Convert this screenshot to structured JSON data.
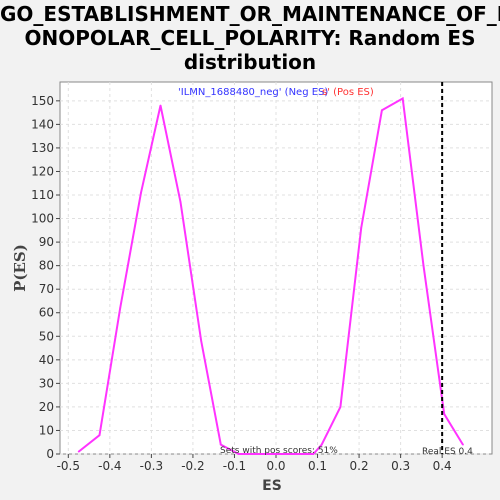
{
  "title_lines": [
    "GO_ESTABLISHMENT_OR_MAINTENANCE_OF_M",
    "ONOPOLAR_CELL_POLARITY: Random ES",
    "distribution"
  ],
  "colors": {
    "series": "#ff33ff",
    "neg_label": "#3333ff",
    "pos_label": "#ff3333",
    "grid": "#e0e0e0",
    "plot_bg": "#ffffff",
    "page_bg": "#f2f2f2",
    "real_es_line": "#000000"
  },
  "chart_data": {
    "type": "line",
    "title": "GO_ESTABLISHMENT_OR_MAINTENANCE_OF_MONOPOLAR_CELL_POLARITY: Random ES distribution",
    "xlabel": "ES",
    "ylabel": "P(ES)",
    "xlim": [
      -0.52,
      0.52
    ],
    "ylim": [
      0,
      158
    ],
    "xticks": [
      -0.5,
      -0.4,
      -0.3,
      -0.2,
      -0.1,
      0.0,
      0.1,
      0.2,
      0.3,
      0.4
    ],
    "xtick_labels": [
      "-0.5",
      "-0.4",
      "-0.3",
      "-0.2",
      "-0.1",
      "0.0",
      "0.1",
      "0.2",
      "0.3",
      "0.4"
    ],
    "yticks": [
      0,
      10,
      20,
      30,
      40,
      50,
      60,
      70,
      80,
      90,
      100,
      110,
      120,
      130,
      140,
      150
    ],
    "grid": true,
    "series": [
      {
        "x": [
          -0.475,
          -0.425,
          -0.375,
          -0.325,
          -0.278,
          -0.23,
          -0.18,
          -0.133,
          -0.09,
          -0.04,
          0.0,
          0.04,
          0.09,
          0.11,
          0.155,
          0.205,
          0.255,
          0.305,
          0.355,
          0.405,
          0.45
        ],
        "y": [
          1,
          8,
          62,
          111,
          148,
          107,
          48,
          4,
          0,
          0,
          0,
          0,
          0,
          4,
          20,
          96,
          146,
          151,
          80,
          17,
          4
        ]
      }
    ],
    "legend_neg": "'ILMN_1688480_neg' (Neg ES)",
    "legend_pos": "s' (Pos ES)",
    "annotation_sets": "Sets with pos scores: 51%",
    "real_es": 0.4,
    "real_es_label": "Real ES 0.4"
  }
}
